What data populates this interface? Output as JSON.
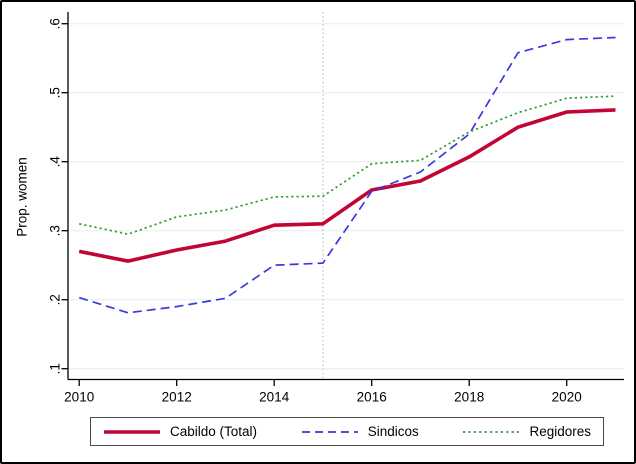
{
  "figure": {
    "background": "#ffffff",
    "border_color": "#000000"
  },
  "chart_data": {
    "type": "line",
    "title": "",
    "xlabel": "",
    "ylabel": "Prop. women",
    "x": [
      2010,
      2011,
      2012,
      2013,
      2014,
      2015,
      2016,
      2017,
      2018,
      2019,
      2020,
      2021
    ],
    "x_axis_ticks": [
      2010,
      2012,
      2014,
      2016,
      2018,
      2020
    ],
    "y_axis_ticks": [
      ".1",
      ".2",
      ".3",
      ".4",
      ".5",
      ".6"
    ],
    "ylim": [
      0.1,
      0.6
    ],
    "xlim": [
      2010,
      2021
    ],
    "grid": true,
    "gridline_color": "#e3edf0",
    "reference_line": {
      "x": 2015,
      "style": "dotted",
      "color": "#b3b3b3"
    },
    "legend_position": "bottom",
    "series": [
      {
        "name": "Cabildo (Total)",
        "color": "#c10534",
        "style": "solid",
        "values": [
          0.27,
          0.256,
          0.272,
          0.285,
          0.308,
          0.31,
          0.359,
          0.372,
          0.407,
          0.45,
          0.472,
          0.475
        ]
      },
      {
        "name": "Sindicos",
        "color": "#3a3ae0",
        "style": "dashed",
        "values": [
          0.203,
          0.181,
          0.19,
          0.202,
          0.25,
          0.253,
          0.357,
          0.385,
          0.44,
          0.558,
          0.577,
          0.58
        ]
      },
      {
        "name": "Regidores",
        "color": "#2e9d32",
        "style": "dotted",
        "values": [
          0.31,
          0.295,
          0.32,
          0.33,
          0.349,
          0.35,
          0.397,
          0.402,
          0.443,
          0.471,
          0.492,
          0.495
        ]
      }
    ]
  }
}
